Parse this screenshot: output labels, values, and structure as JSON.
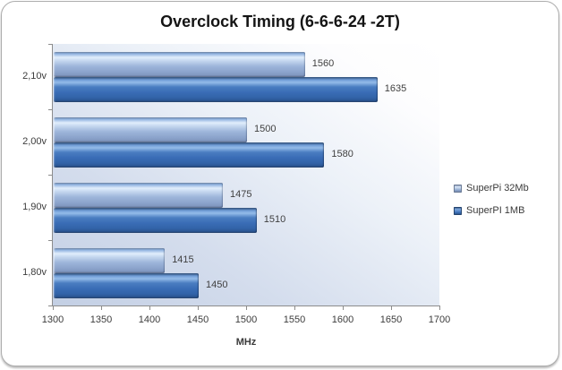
{
  "figure": {
    "border_color": "#adadad",
    "background": "#ffffff"
  },
  "chart_data": {
    "type": "bar",
    "orientation": "horizontal",
    "title": "Overclock Timing (6-6-6-24 -2T)",
    "categories": [
      "2,10v",
      "2,00v",
      "1,90v",
      "1,80v"
    ],
    "series": [
      {
        "name": "SuperPi 32Mb",
        "values": [
          1560,
          1500,
          1475,
          1415
        ],
        "color": "#8da5cd"
      },
      {
        "name": "SuperPI 1MB",
        "values": [
          1635,
          1580,
          1510,
          1450
        ],
        "color": "#3a6db6"
      }
    ],
    "xlabel": "MHz",
    "xlim": [
      1300,
      1700
    ],
    "xticks": [
      1300,
      1350,
      1400,
      1450,
      1500,
      1550,
      1600,
      1650,
      1700
    ],
    "legend_position": "right",
    "grid": false,
    "data_labels": true,
    "plot_bg_gradient": [
      "#c3cfe4",
      "#ffffff"
    ]
  }
}
